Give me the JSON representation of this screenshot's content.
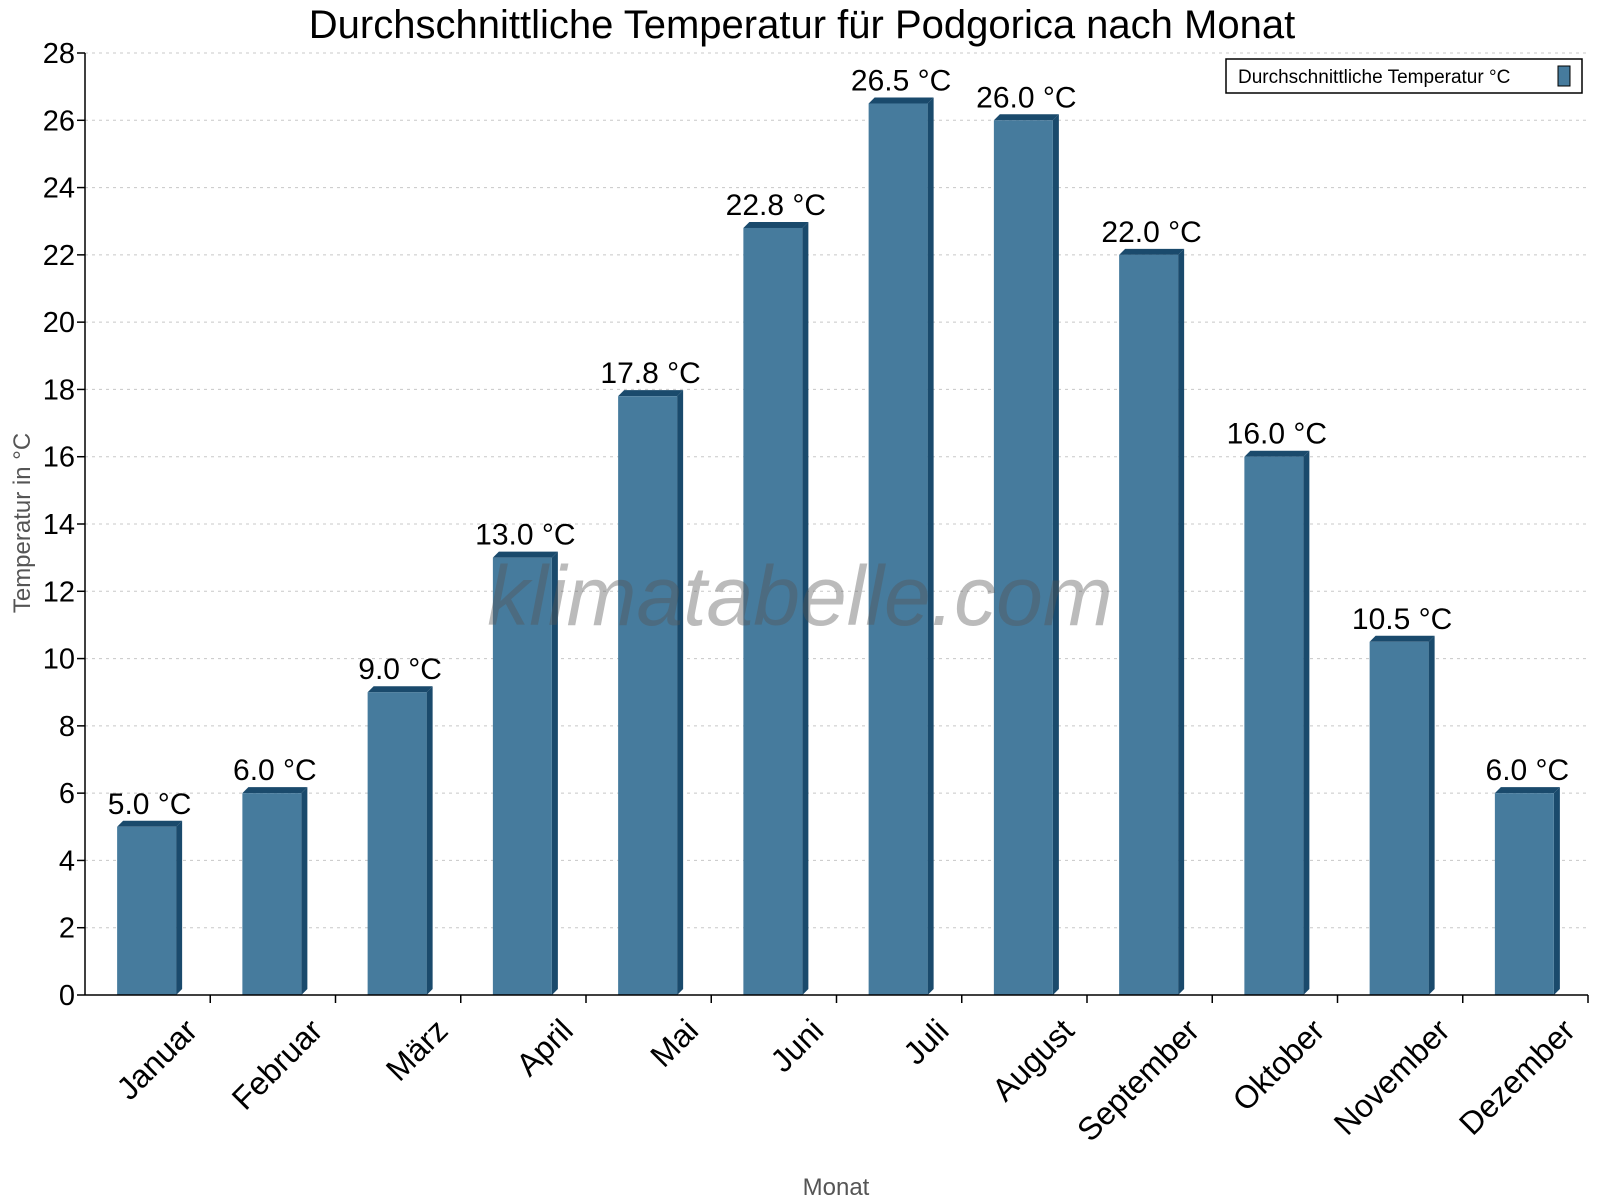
{
  "chart_data": {
    "type": "bar",
    "title": "Durchschnittliche Temperatur für Podgorica nach Monat",
    "xlabel": "Monat",
    "ylabel": "Temperatur in °C",
    "categories": [
      "Januar",
      "Februar",
      "März",
      "April",
      "Mai",
      "Juni",
      "Juli",
      "August",
      "September",
      "Oktober",
      "November",
      "Dezember"
    ],
    "series": [
      {
        "name": "Durchschnittliche Temperatur °C",
        "values": [
          5.0,
          6.0,
          9.0,
          13.0,
          17.8,
          22.8,
          26.5,
          26.0,
          22.0,
          16.0,
          10.5,
          6.0
        ]
      }
    ],
    "data_labels": [
      "5.0 °C",
      "6.0 °C",
      "9.0 °C",
      "13.0 °C",
      "17.8 °C",
      "22.8 °C",
      "26.5 °C",
      "26.0 °C",
      "22.0 °C",
      "16.0 °C",
      "10.5 °C",
      "6.0 °C"
    ],
    "ylim": [
      0,
      28
    ],
    "yticks": [
      0,
      2,
      4,
      6,
      8,
      10,
      12,
      14,
      16,
      18,
      20,
      22,
      24,
      26,
      28
    ],
    "grid": true,
    "legend_position": "top-right",
    "watermark": "klimatabelle.com",
    "colors": {
      "bar": "#467b9d",
      "bar_side": "#1a4a6c",
      "grid": "#c8c8c8"
    }
  }
}
